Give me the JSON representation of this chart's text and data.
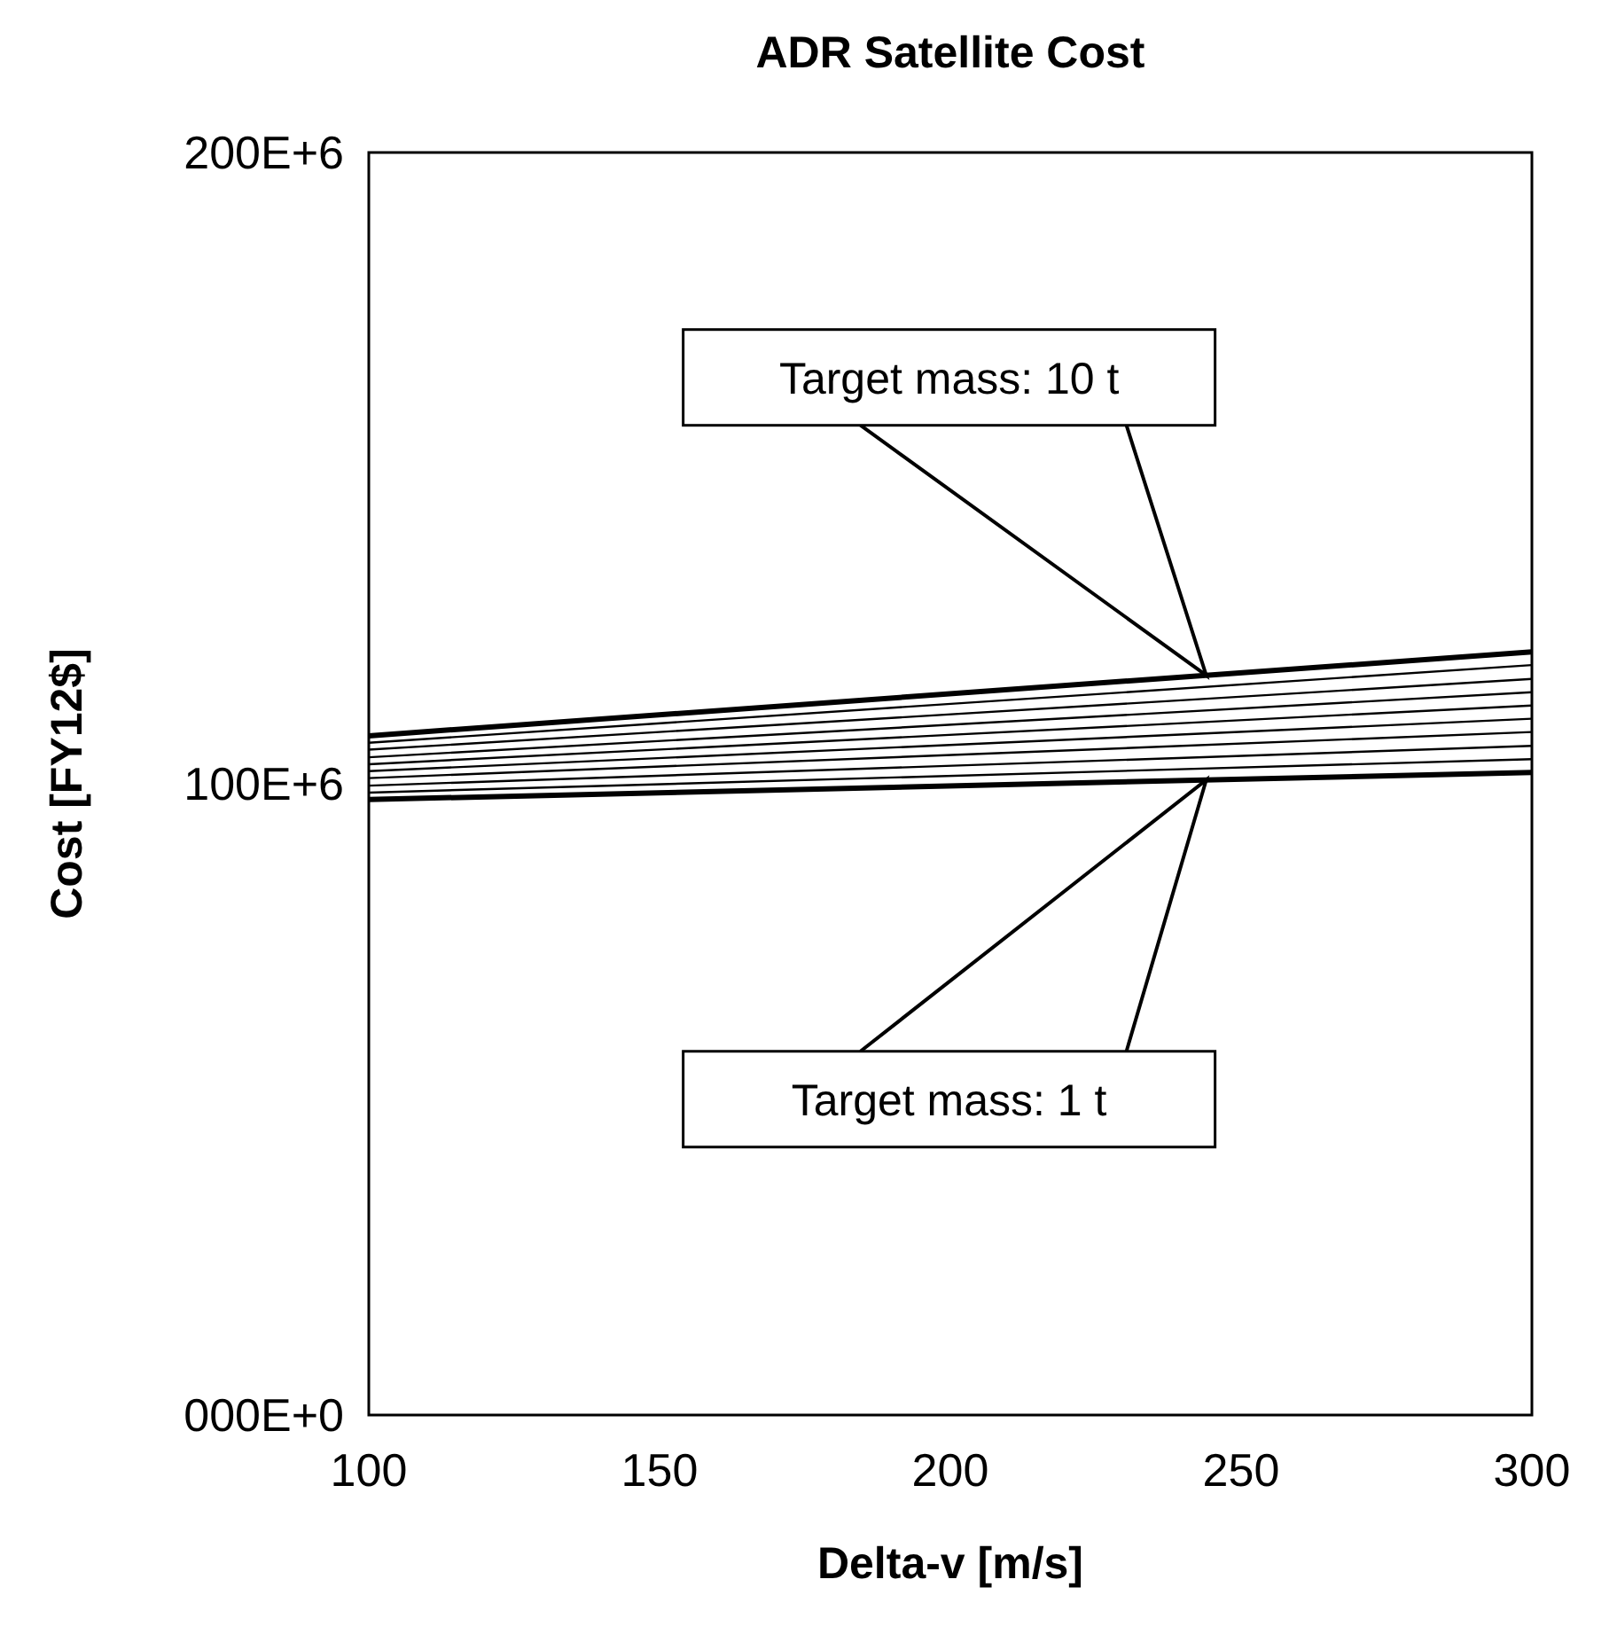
{
  "chart_data": {
    "type": "line",
    "title": "ADR Satellite Cost",
    "xlabel": "Delta-v [m/s]",
    "ylabel": "Cost [FY12$]",
    "xlim": [
      100,
      300
    ],
    "xticks": [
      100,
      150,
      200,
      250,
      300
    ],
    "ylim": [
      0,
      200000000
    ],
    "yticks": [
      {
        "value": 0,
        "label": "000E+0"
      },
      {
        "value": 100000000,
        "label": "100E+6"
      },
      {
        "value": 200000000,
        "label": "200E+6"
      }
    ],
    "grid": false,
    "marker": "none",
    "line_style": "solid",
    "x": [
      100,
      300
    ],
    "series": [
      {
        "color": "#000000",
        "values": [
          97500000,
          101800000
        ]
      },
      {
        "color": "#000000",
        "values": [
          98600000,
          103900000
        ]
      },
      {
        "color": "#000000",
        "values": [
          99700000,
          106000000
        ]
      },
      {
        "color": "#000000",
        "values": [
          100900000,
          108200000
        ]
      },
      {
        "color": "#000000",
        "values": [
          102000000,
          110300000
        ]
      },
      {
        "color": "#000000",
        "values": [
          103100000,
          112400000
        ]
      },
      {
        "color": "#000000",
        "values": [
          104200000,
          114500000
        ]
      },
      {
        "color": "#000000",
        "values": [
          105400000,
          116600000
        ]
      },
      {
        "color": "#000000",
        "values": [
          106500000,
          118800000
        ]
      },
      {
        "color": "#000000",
        "values": [
          107600000,
          120900000
        ]
      }
    ],
    "annotations": [
      "Target mass: 10 t",
      "Target mass: 1 t"
    ]
  }
}
